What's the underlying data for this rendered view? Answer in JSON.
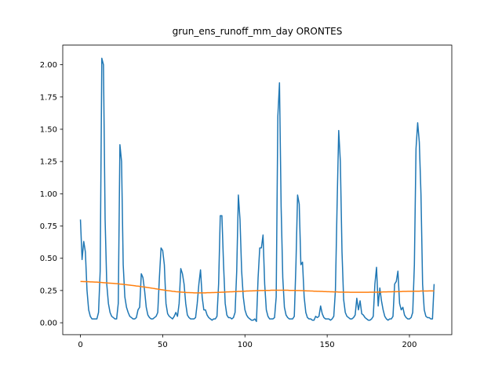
{
  "chart_data": {
    "type": "line",
    "title": "grun_ens_runoff_mm_day ORONTES",
    "x": [
      0,
      1,
      2,
      3,
      4,
      5,
      6,
      7,
      8,
      9,
      10,
      11,
      12,
      13,
      14,
      15,
      16,
      17,
      18,
      19,
      20,
      21,
      22,
      23,
      24,
      25,
      26,
      27,
      28,
      29,
      30,
      31,
      32,
      33,
      34,
      35,
      36,
      37,
      38,
      39,
      40,
      41,
      42,
      43,
      44,
      45,
      46,
      47,
      48,
      49,
      50,
      51,
      52,
      53,
      54,
      55,
      56,
      57,
      58,
      59,
      60,
      61,
      62,
      63,
      64,
      65,
      66,
      67,
      68,
      69,
      70,
      71,
      72,
      73,
      74,
      75,
      76,
      77,
      78,
      79,
      80,
      81,
      82,
      83,
      84,
      85,
      86,
      87,
      88,
      89,
      90,
      91,
      92,
      93,
      94,
      95,
      96,
      97,
      98,
      99,
      100,
      101,
      102,
      103,
      104,
      105,
      106,
      107,
      108,
      109,
      110,
      111,
      112,
      113,
      114,
      115,
      116,
      117,
      118,
      119,
      120,
      121,
      122,
      123,
      124,
      125,
      126,
      127,
      128,
      129,
      130,
      131,
      132,
      133,
      134,
      135,
      136,
      137,
      138,
      139,
      140,
      141,
      142,
      143,
      144,
      145,
      146,
      147,
      148,
      149,
      150,
      151,
      152,
      153,
      154,
      155,
      156,
      157,
      158,
      159,
      160,
      161,
      162,
      163,
      164,
      165,
      166,
      167,
      168,
      169,
      170,
      171,
      172,
      173,
      174,
      175,
      176,
      177,
      178,
      179,
      180,
      181,
      182,
      183,
      184,
      185,
      186,
      187,
      188,
      189,
      190,
      191,
      192,
      193,
      194,
      195,
      196,
      197,
      198,
      199,
      200,
      201,
      202,
      203,
      204,
      205,
      206,
      207,
      208,
      209,
      210,
      211,
      212,
      213,
      214,
      215
    ],
    "series": [
      {
        "color": "#1f77b4",
        "values": [
          0.8,
          0.49,
          0.63,
          0.55,
          0.25,
          0.1,
          0.05,
          0.03,
          0.03,
          0.03,
          0.03,
          0.08,
          0.4,
          2.05,
          2.0,
          0.8,
          0.3,
          0.15,
          0.08,
          0.05,
          0.04,
          0.03,
          0.03,
          0.15,
          1.38,
          1.25,
          0.45,
          0.2,
          0.12,
          0.08,
          0.05,
          0.04,
          0.03,
          0.03,
          0.04,
          0.1,
          0.12,
          0.38,
          0.35,
          0.25,
          0.12,
          0.06,
          0.04,
          0.03,
          0.03,
          0.04,
          0.05,
          0.08,
          0.35,
          0.58,
          0.56,
          0.45,
          0.15,
          0.07,
          0.05,
          0.04,
          0.03,
          0.05,
          0.08,
          0.05,
          0.15,
          0.42,
          0.38,
          0.3,
          0.15,
          0.06,
          0.04,
          0.03,
          0.03,
          0.03,
          0.04,
          0.15,
          0.3,
          0.41,
          0.2,
          0.1,
          0.1,
          0.06,
          0.04,
          0.03,
          0.02,
          0.03,
          0.03,
          0.05,
          0.3,
          0.83,
          0.83,
          0.45,
          0.15,
          0.06,
          0.04,
          0.04,
          0.03,
          0.04,
          0.08,
          0.4,
          0.99,
          0.8,
          0.4,
          0.2,
          0.1,
          0.06,
          0.04,
          0.03,
          0.02,
          0.02,
          0.03,
          0.01,
          0.35,
          0.58,
          0.58,
          0.68,
          0.3,
          0.1,
          0.05,
          0.03,
          0.03,
          0.03,
          0.04,
          0.2,
          1.6,
          1.86,
          0.9,
          0.35,
          0.12,
          0.06,
          0.04,
          0.03,
          0.03,
          0.03,
          0.05,
          0.45,
          0.99,
          0.92,
          0.45,
          0.47,
          0.2,
          0.08,
          0.04,
          0.03,
          0.03,
          0.02,
          0.02,
          0.05,
          0.04,
          0.05,
          0.13,
          0.07,
          0.04,
          0.03,
          0.03,
          0.03,
          0.02,
          0.03,
          0.05,
          0.25,
          0.9,
          1.49,
          1.25,
          0.55,
          0.18,
          0.08,
          0.05,
          0.04,
          0.03,
          0.03,
          0.04,
          0.06,
          0.19,
          0.1,
          0.17,
          0.07,
          0.06,
          0.04,
          0.03,
          0.02,
          0.02,
          0.03,
          0.05,
          0.3,
          0.43,
          0.13,
          0.27,
          0.17,
          0.1,
          0.05,
          0.03,
          0.02,
          0.03,
          0.03,
          0.05,
          0.3,
          0.32,
          0.4,
          0.15,
          0.1,
          0.12,
          0.06,
          0.04,
          0.03,
          0.03,
          0.04,
          0.08,
          0.45,
          1.35,
          1.55,
          1.4,
          1.0,
          0.3,
          0.1,
          0.05,
          0.04,
          0.04,
          0.03,
          0.03,
          0.3
        ]
      },
      {
        "color": "#ff7f0e",
        "values": [
          0.32,
          0.32,
          0.319,
          0.319,
          0.318,
          0.318,
          0.317,
          0.317,
          0.316,
          0.315,
          0.315,
          0.314,
          0.313,
          0.312,
          0.311,
          0.31,
          0.309,
          0.308,
          0.307,
          0.306,
          0.305,
          0.304,
          0.303,
          0.302,
          0.3,
          0.299,
          0.298,
          0.296,
          0.295,
          0.293,
          0.292,
          0.29,
          0.289,
          0.287,
          0.285,
          0.284,
          0.282,
          0.28,
          0.278,
          0.277,
          0.275,
          0.273,
          0.271,
          0.269,
          0.267,
          0.265,
          0.263,
          0.261,
          0.259,
          0.257,
          0.255,
          0.253,
          0.251,
          0.249,
          0.248,
          0.246,
          0.244,
          0.243,
          0.241,
          0.24,
          0.239,
          0.238,
          0.237,
          0.236,
          0.235,
          0.234,
          0.234,
          0.233,
          0.233,
          0.232,
          0.232,
          0.232,
          0.232,
          0.232,
          0.232,
          0.232,
          0.232,
          0.233,
          0.233,
          0.233,
          0.234,
          0.234,
          0.235,
          0.235,
          0.236,
          0.236,
          0.237,
          0.237,
          0.238,
          0.239,
          0.239,
          0.24,
          0.24,
          0.241,
          0.242,
          0.242,
          0.243,
          0.243,
          0.244,
          0.245,
          0.245,
          0.246,
          0.246,
          0.247,
          0.247,
          0.248,
          0.248,
          0.249,
          0.249,
          0.25,
          0.25,
          0.25,
          0.251,
          0.251,
          0.251,
          0.251,
          0.252,
          0.252,
          0.252,
          0.252,
          0.252,
          0.252,
          0.252,
          0.252,
          0.252,
          0.252,
          0.252,
          0.251,
          0.251,
          0.251,
          0.251,
          0.25,
          0.25,
          0.25,
          0.249,
          0.249,
          0.248,
          0.248,
          0.247,
          0.247,
          0.246,
          0.246,
          0.245,
          0.245,
          0.244,
          0.244,
          0.243,
          0.243,
          0.242,
          0.242,
          0.241,
          0.241,
          0.24,
          0.24,
          0.239,
          0.239,
          0.239,
          0.238,
          0.238,
          0.238,
          0.237,
          0.237,
          0.237,
          0.237,
          0.236,
          0.236,
          0.236,
          0.236,
          0.236,
          0.236,
          0.236,
          0.236,
          0.236,
          0.236,
          0.236,
          0.236,
          0.237,
          0.237,
          0.237,
          0.237,
          0.237,
          0.238,
          0.238,
          0.238,
          0.239,
          0.239,
          0.239,
          0.24,
          0.24,
          0.24,
          0.241,
          0.241,
          0.241,
          0.242,
          0.242,
          0.242,
          0.243,
          0.243,
          0.243,
          0.244,
          0.244,
          0.244,
          0.244,
          0.245,
          0.245,
          0.245,
          0.245,
          0.246,
          0.246,
          0.246,
          0.246,
          0.246,
          0.247,
          0.247,
          0.247,
          0.247
        ]
      }
    ],
    "xlim": [
      -10.75,
      225.75
    ],
    "xticks": [
      0,
      50,
      100,
      150,
      200
    ],
    "ylim": [
      -0.092,
      2.152
    ],
    "yticks": [
      {
        "value": 0,
        "label": "0.00"
      },
      {
        "value": 0.25,
        "label": "0.25"
      },
      {
        "value": 0.5,
        "label": "0.50"
      },
      {
        "value": 0.75,
        "label": "0.75"
      },
      {
        "value": 1,
        "label": "1.00"
      },
      {
        "value": 1.25,
        "label": "1.25"
      },
      {
        "value": 1.5,
        "label": "1.50"
      },
      {
        "value": 1.75,
        "label": "1.75"
      },
      {
        "value": 2,
        "label": "2.00"
      }
    ],
    "grid": false
  }
}
